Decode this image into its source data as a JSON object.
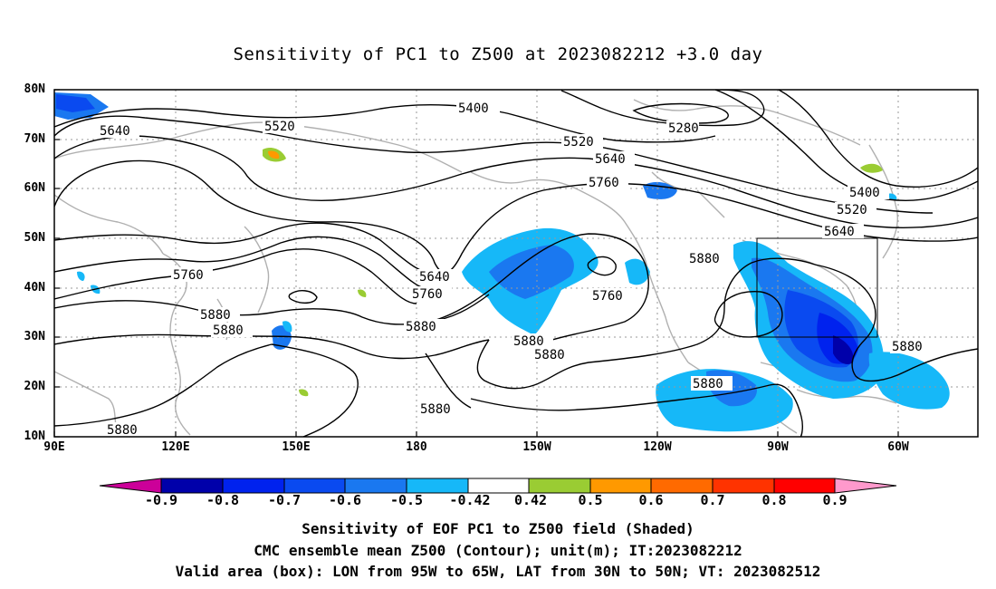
{
  "title": "Sensitivity of PC1 to Z500 at 2023082212 +3.0 day",
  "lat_labels": [
    "80N",
    "70N",
    "60N",
    "50N",
    "40N",
    "30N",
    "20N",
    "10N"
  ],
  "lon_labels": [
    "90E",
    "120E",
    "150E",
    "180",
    "150W",
    "120W",
    "90W",
    "60W"
  ],
  "contour_labels": [
    "5400",
    "5280",
    "5520",
    "5640",
    "5520",
    "5640",
    "5760",
    "5400",
    "5520",
    "5640",
    "5760",
    "5640",
    "5760",
    "5760",
    "5880",
    "5880",
    "5880",
    "5880",
    "5880",
    "5880",
    "5880",
    "5880",
    "5880",
    "5880"
  ],
  "colorbar": {
    "labels": [
      "-0.9",
      "-0.8",
      "-0.7",
      "-0.6",
      "-0.5",
      "-0.42",
      "0.42",
      "0.5",
      "0.6",
      "0.7",
      "0.8",
      "0.9"
    ],
    "colors": [
      "#cc0099",
      "#0000aa",
      "#0022ee",
      "#0a4af0",
      "#1a78f0",
      "#16b8f8",
      "#ffffff",
      "#9acc33",
      "#ff9900",
      "#ff6a00",
      "#ff3300",
      "#ff0000",
      "#ff99cc"
    ]
  },
  "captions": [
    "Sensitivity of EOF PC1 to Z500 field (Shaded)",
    "CMC ensemble mean Z500 (Contour); unit(m); IT:2023082212",
    "Valid area (box): LON from 95W to 65W, LAT from 30N to 50N; VT: 2023082512"
  ]
}
